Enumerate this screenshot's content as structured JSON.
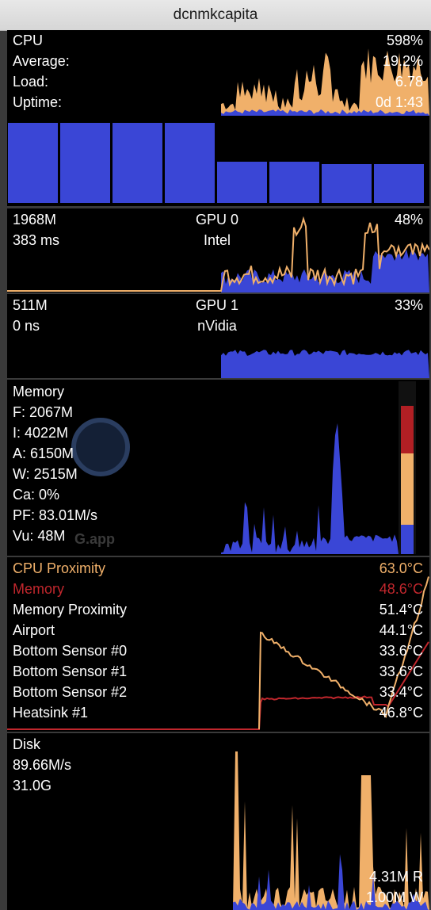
{
  "window": {
    "title": "dcnmkcapita"
  },
  "colors": {
    "accent_orange": "#f0b06a",
    "blue": "#3a46d6",
    "red": "#c1272d",
    "panel_bg": "#000000"
  },
  "cpu": {
    "labels": [
      "CPU",
      "Average:",
      "Load:",
      "Uptime:"
    ],
    "values": [
      "598%",
      "19.2%",
      "6.78",
      "0d 1:43"
    ],
    "core_levels": [
      0.72,
      0.72,
      0.72,
      0.72,
      0.37,
      0.37,
      0.35,
      0.35
    ]
  },
  "gpu0": {
    "mem": "1968M",
    "time": "383 ms",
    "name": "GPU 0",
    "vendor": "Intel",
    "percent": "48%"
  },
  "gpu1": {
    "mem": "511M",
    "time": "0 ns",
    "name": "GPU 1",
    "vendor": "nVidia",
    "percent": "33%"
  },
  "memory": {
    "lines": [
      "Memory",
      "F: 2067M",
      "I: 4022M",
      "A: 6150M",
      "W: 2515M",
      "Ca: 0%",
      "PF: 83.01M/s",
      "Vu: 48M"
    ],
    "watermark": "G.app"
  },
  "sensors": [
    {
      "name": "CPU Proximity",
      "value": "63.0°C",
      "color": "#f0b06a"
    },
    {
      "name": "Memory",
      "value": "48.6°C",
      "color": "#c1272d"
    },
    {
      "name": "Memory Proximity",
      "value": "51.4°C",
      "color": "#ffffff"
    },
    {
      "name": "Airport",
      "value": "44.1°C",
      "color": "#ffffff"
    },
    {
      "name": "Bottom Sensor #0",
      "value": "33.6°C",
      "color": "#ffffff"
    },
    {
      "name": "Bottom Sensor #1",
      "value": "33.6°C",
      "color": "#ffffff"
    },
    {
      "name": "Bottom Sensor #2",
      "value": "33.4°C",
      "color": "#ffffff"
    },
    {
      "name": "Heatsink #1",
      "value": "46.8°C",
      "color": "#ffffff"
    }
  ],
  "disk": {
    "label": "Disk",
    "rate": "89.66M/s",
    "total": "31.0G",
    "read": "4.31M R",
    "write": "1.00M W"
  }
}
